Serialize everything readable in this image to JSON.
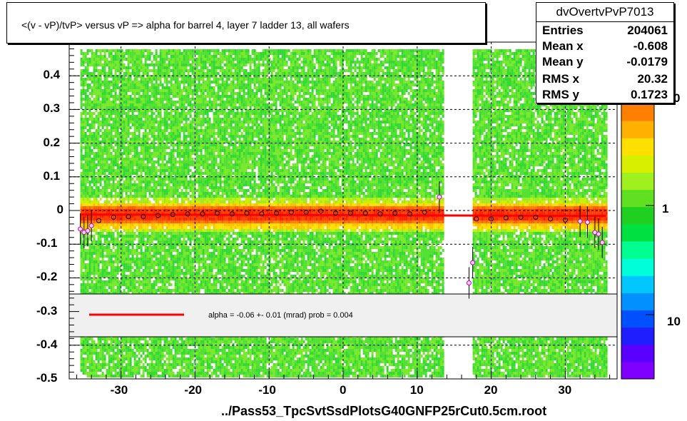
{
  "title": "<(v - vP)/tvP> versus   vP => alpha for barrel 4, layer 7 ladder 13, all wafers",
  "x_axis_title": "../Pass53_TpcSvtSsdPlotsG40GNFP25rCut0.5cm.root",
  "stats": {
    "name": "dvOvertvPvP7013",
    "rows": [
      {
        "key": "Entries",
        "value": "204061"
      },
      {
        "key": "Mean x",
        "value": "-0.608"
      },
      {
        "key": "Mean y",
        "value": "-0.0179"
      },
      {
        "key": "RMS x",
        "value": "20.32"
      },
      {
        "key": "RMS y",
        "value": "0.1723"
      }
    ]
  },
  "legend": {
    "text": "alpha =   -0.06 +-  0.01 (mrad) prob = 0.004",
    "line_color": "#ff0000"
  },
  "palette_labels": [
    "1",
    "10"
  ],
  "palette_partial_label": "0",
  "chart_data": {
    "type": "heatmap",
    "title": "<(v - vP)/tvP> versus   vP => alpha for barrel 4, layer 7 ladder 13, all wafers",
    "xlabel": "../Pass53_TpcSvtSsdPlotsG40GNFP25rCut0.5cm.root",
    "ylabel": "",
    "xlim": [
      -37,
      37
    ],
    "ylim": [
      -0.5,
      0.5
    ],
    "x_ticks": [
      "-30",
      "-20",
      "-10",
      "0",
      "10",
      "20",
      "30"
    ],
    "x_tick_values": [
      -30,
      -20,
      -10,
      0,
      10,
      20,
      30
    ],
    "y_ticks": [
      "-0.5",
      "-0.4",
      "-0.3",
      "-0.2",
      "-0.1",
      "0",
      "0.1",
      "0.2",
      "0.3",
      "0.4"
    ],
    "y_tick_values": [
      -0.5,
      -0.4,
      -0.3,
      -0.2,
      -0.1,
      0,
      0.1,
      0.2,
      0.3,
      0.4
    ],
    "grid": true,
    "occupied_x_ranges": [
      [
        -35.5,
        13.5
      ],
      [
        17.5,
        35.5
      ]
    ],
    "fit_line": {
      "x": [
        -35.5,
        35.5
      ],
      "y": [
        -0.012,
        -0.016
      ],
      "color": "#ff0000"
    },
    "profile_points": {
      "x": [
        -35.5,
        -35,
        -34.5,
        -34,
        -33,
        -31,
        -29,
        -27,
        -25,
        -23,
        -21,
        -19,
        -17,
        -15,
        -13,
        -11,
        -9,
        -7,
        -5,
        -3,
        -1,
        1,
        3,
        5,
        7,
        9,
        11,
        13,
        17,
        17.5,
        18,
        20,
        22,
        24,
        26,
        28,
        30,
        32,
        33,
        34,
        34.5,
        35
      ],
      "y": [
        -0.055,
        -0.065,
        -0.06,
        -0.045,
        -0.03,
        -0.02,
        -0.018,
        -0.018,
        -0.015,
        -0.012,
        -0.01,
        -0.01,
        -0.008,
        -0.01,
        -0.008,
        -0.01,
        -0.008,
        -0.005,
        -0.005,
        -0.002,
        -0.008,
        -0.008,
        -0.008,
        -0.01,
        -0.008,
        -0.01,
        -0.005,
        0.04,
        -0.215,
        -0.155,
        -0.025,
        -0.025,
        -0.022,
        -0.02,
        -0.02,
        -0.025,
        -0.028,
        -0.032,
        -0.035,
        -0.065,
        -0.07,
        -0.095
      ]
    },
    "palette": {
      "colors_bottom_to_top": [
        "#7f00ff",
        "#5a00ff",
        "#1e1eff",
        "#0050ff",
        "#0090ff",
        "#00c8ff",
        "#00ffd8",
        "#00ff90",
        "#00e040",
        "#20d020",
        "#60e020",
        "#a0f020",
        "#d8f000",
        "#ffe000",
        "#ffb000",
        "#ff8000"
      ]
    }
  }
}
